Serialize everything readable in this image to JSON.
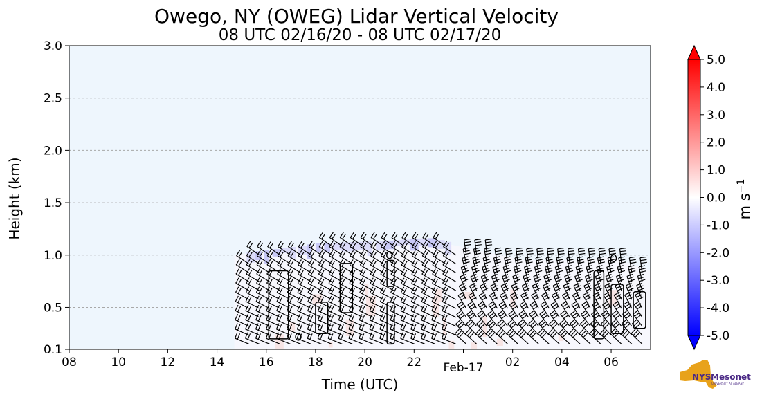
{
  "chart_data": {
    "type": "heatmap",
    "title": "Owego, NY (OWEG) Lidar Vertical Velocity",
    "subtitle": "08 UTC 02/16/20 - 08 UTC 02/17/20",
    "xlabel": "Time (UTC)",
    "ylabel": "Height (km)",
    "x_ticks": [
      {
        "hour": 0,
        "label": "08"
      },
      {
        "hour": 2,
        "label": "10"
      },
      {
        "hour": 4,
        "label": "12"
      },
      {
        "hour": 6,
        "label": "14"
      },
      {
        "hour": 8,
        "label": "16"
      },
      {
        "hour": 10,
        "label": "18"
      },
      {
        "hour": 12,
        "label": "20"
      },
      {
        "hour": 14,
        "label": "22"
      },
      {
        "hour": 18,
        "label": "02"
      },
      {
        "hour": 20,
        "label": "04"
      },
      {
        "hour": 22,
        "label": "06"
      }
    ],
    "date_marker": {
      "hour": 16,
      "label": "Feb-17"
    },
    "xlim": [
      0,
      23.6
    ],
    "y_ticks": [
      {
        "value": 0.1,
        "label": "0.1"
      },
      {
        "value": 0.5,
        "label": "0.5"
      },
      {
        "value": 1.0,
        "label": "1.0"
      },
      {
        "value": 1.5,
        "label": "1.5"
      },
      {
        "value": 2.0,
        "label": "2.0"
      },
      {
        "value": 2.5,
        "label": "2.5"
      },
      {
        "value": 3.0,
        "label": "3.0"
      }
    ],
    "ylim": [
      0.1,
      3.0
    ],
    "grid": "horizontal dashed",
    "background_value": -0.25,
    "data_start_hour": 6.7,
    "data_top_km": [
      {
        "hour": 6.7,
        "km": 1.0
      },
      {
        "hour": 8.5,
        "km": 1.05
      },
      {
        "hour": 10.0,
        "km": 1.1
      },
      {
        "hour": 12.5,
        "km": 1.12
      },
      {
        "hour": 14.5,
        "km": 1.15
      },
      {
        "hour": 16.5,
        "km": 1.05
      },
      {
        "hour": 18.5,
        "km": 0.95
      },
      {
        "hour": 20.5,
        "km": 0.95
      },
      {
        "hour": 22.0,
        "km": 0.98
      },
      {
        "hour": 23.6,
        "km": 0.85
      }
    ],
    "colorbar": {
      "min": -5.0,
      "max": 5.0,
      "ticks": [
        "5.0",
        "4.0",
        "3.0",
        "2.0",
        "1.0",
        "0.0",
        "-1.0",
        "-2.0",
        "-3.0",
        "-4.0",
        "-5.0"
      ],
      "label": "m s",
      "label_superscript": "−1",
      "colors": {
        "negative": "#0000ff",
        "zero": "#ffffff",
        "positive": "#ff0000"
      }
    },
    "background_color": "#eef6fd"
  },
  "logo": {
    "text_nys": "NYS",
    "text_mesonet": "Mesonet",
    "text_university": "UNIVERSITY AT ALBANY",
    "colors": {
      "state": "#e8a21b",
      "text": "#4b2a86"
    }
  }
}
